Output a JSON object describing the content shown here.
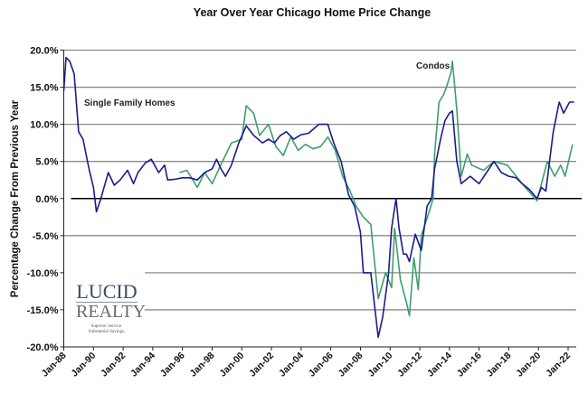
{
  "chart_data": {
    "type": "line",
    "title": "Year Over Year Chicago Home Price Change",
    "xlabel": "",
    "ylabel": "Percentage Change From Previous Year",
    "ylim": [
      -20,
      20
    ],
    "xlim": [
      1988,
      2022.5
    ],
    "y_ticks": [
      "20.0%",
      "15.0%",
      "10.0%",
      "5.0%",
      "0.0%",
      "-5.0%",
      "-10.0%",
      "-15.0%",
      "-20.0%"
    ],
    "x_ticks": [
      "Jan-88",
      "Jan-90",
      "Jan-92",
      "Jan-94",
      "Jan-96",
      "Jan-98",
      "Jan-00",
      "Jan-02",
      "Jan-04",
      "Jan-06",
      "Jan-08",
      "Jan-10",
      "Jan-12",
      "Jan-14",
      "Jan-16",
      "Jan-18",
      "Jan-20",
      "Jan-22"
    ],
    "grid": "horizontal",
    "legend": "none",
    "series": [
      {
        "name": "Single Family Homes",
        "color": "#1c1c8a",
        "points": [
          [
            1988.0,
            14.5
          ],
          [
            1988.15,
            19
          ],
          [
            1988.4,
            18.5
          ],
          [
            1988.7,
            16.8
          ],
          [
            1989.0,
            9
          ],
          [
            1989.3,
            8
          ],
          [
            1989.7,
            4
          ],
          [
            1990.0,
            1.5
          ],
          [
            1990.2,
            -1.8
          ],
          [
            1990.5,
            0
          ],
          [
            1991.0,
            3.5
          ],
          [
            1991.4,
            1.8
          ],
          [
            1991.8,
            2.5
          ],
          [
            1992.3,
            3.8
          ],
          [
            1992.7,
            2
          ],
          [
            1993.0,
            3.5
          ],
          [
            1993.5,
            4.8
          ],
          [
            1993.9,
            5.3
          ],
          [
            1994.4,
            3.5
          ],
          [
            1994.8,
            4.5
          ],
          [
            1995.0,
            2.5
          ],
          [
            1995.5,
            2.6
          ],
          [
            1996.0,
            2.8
          ],
          [
            1996.5,
            2.8
          ],
          [
            1997.0,
            2.5
          ],
          [
            1997.5,
            3.5
          ],
          [
            1998.0,
            4
          ],
          [
            1998.3,
            5.3
          ],
          [
            1998.6,
            4
          ],
          [
            1998.9,
            3
          ],
          [
            1999.3,
            4.5
          ],
          [
            1999.8,
            7.5
          ],
          [
            2000.3,
            9.8
          ],
          [
            2000.8,
            8.5
          ],
          [
            2001.4,
            7.5
          ],
          [
            2001.8,
            8
          ],
          [
            2002.2,
            7.5
          ],
          [
            2002.6,
            8.5
          ],
          [
            2003.0,
            9
          ],
          [
            2003.5,
            8
          ],
          [
            2004.0,
            8.6
          ],
          [
            2004.5,
            8.8
          ],
          [
            2005.2,
            10
          ],
          [
            2005.8,
            10
          ],
          [
            2006.2,
            7.5
          ],
          [
            2006.7,
            5
          ],
          [
            2007.2,
            0.5
          ],
          [
            2007.6,
            -1
          ],
          [
            2008.0,
            -4.5
          ],
          [
            2008.2,
            -10
          ],
          [
            2008.7,
            -10
          ],
          [
            2009.2,
            -18.7
          ],
          [
            2009.5,
            -16
          ],
          [
            2009.9,
            -10
          ],
          [
            2010.1,
            -4
          ],
          [
            2010.4,
            0
          ],
          [
            2010.6,
            -4
          ],
          [
            2010.9,
            -7.5
          ],
          [
            2011.1,
            -7.5
          ],
          [
            2011.3,
            -8.5
          ],
          [
            2011.7,
            -4.8
          ],
          [
            2012.1,
            -7
          ],
          [
            2012.5,
            -1
          ],
          [
            2012.8,
            0
          ],
          [
            2013.0,
            4
          ],
          [
            2013.4,
            8
          ],
          [
            2013.7,
            10.5
          ],
          [
            2014.0,
            11.5
          ],
          [
            2014.2,
            11.8
          ],
          [
            2014.5,
            5
          ],
          [
            2014.8,
            2
          ],
          [
            2015.4,
            3
          ],
          [
            2016.0,
            2
          ],
          [
            2016.5,
            3.5
          ],
          [
            2017.0,
            5
          ],
          [
            2017.5,
            3.5
          ],
          [
            2018.0,
            3
          ],
          [
            2018.5,
            2.8
          ],
          [
            2018.9,
            2
          ],
          [
            2019.4,
            1.2
          ],
          [
            2019.9,
            0
          ],
          [
            2020.2,
            1.5
          ],
          [
            2020.5,
            1
          ],
          [
            2021.0,
            9
          ],
          [
            2021.4,
            13
          ],
          [
            2021.7,
            11.5
          ],
          [
            2022.1,
            13
          ],
          [
            2022.4,
            13
          ]
        ]
      },
      {
        "name": "Condos",
        "color": "#3f9e6e",
        "points": [
          [
            1995.8,
            3.5
          ],
          [
            1996.3,
            3.8
          ],
          [
            1996.7,
            2.5
          ],
          [
            1997.0,
            1.5
          ],
          [
            1997.5,
            3.5
          ],
          [
            1998.0,
            2
          ],
          [
            1998.7,
            5
          ],
          [
            1999.3,
            7.5
          ],
          [
            2000.0,
            8
          ],
          [
            2000.3,
            12.5
          ],
          [
            2000.8,
            11.5
          ],
          [
            2001.2,
            8.5
          ],
          [
            2001.8,
            10
          ],
          [
            2002.3,
            7
          ],
          [
            2002.8,
            5.8
          ],
          [
            2003.3,
            8.3
          ],
          [
            2003.8,
            6.5
          ],
          [
            2004.3,
            7.3
          ],
          [
            2004.8,
            6.7
          ],
          [
            2005.3,
            7
          ],
          [
            2005.8,
            8.3
          ],
          [
            2006.3,
            6.5
          ],
          [
            2006.8,
            3
          ],
          [
            2007.3,
            1
          ],
          [
            2007.7,
            -1
          ],
          [
            2008.2,
            -2.5
          ],
          [
            2008.7,
            -3.5
          ],
          [
            2009.2,
            -13.5
          ],
          [
            2009.7,
            -10
          ],
          [
            2010.1,
            -12
          ],
          [
            2010.3,
            -4
          ],
          [
            2010.7,
            -11
          ],
          [
            2011.1,
            -14
          ],
          [
            2011.3,
            -15.8
          ],
          [
            2011.6,
            -8
          ],
          [
            2011.9,
            -12.3
          ],
          [
            2012.1,
            -5
          ],
          [
            2012.6,
            -2
          ],
          [
            2012.9,
            0
          ],
          [
            2013.0,
            6
          ],
          [
            2013.3,
            13
          ],
          [
            2013.6,
            14
          ],
          [
            2013.8,
            15
          ],
          [
            2014.1,
            17
          ],
          [
            2014.2,
            18.5
          ],
          [
            2014.5,
            12
          ],
          [
            2014.8,
            3
          ],
          [
            2015.2,
            6
          ],
          [
            2015.5,
            4.5
          ],
          [
            2016.3,
            3.8
          ],
          [
            2017.0,
            5
          ],
          [
            2017.9,
            4.5
          ],
          [
            2018.9,
            2
          ],
          [
            2019.9,
            -0.3
          ],
          [
            2020.6,
            5
          ],
          [
            2021.1,
            3
          ],
          [
            2021.5,
            4.5
          ],
          [
            2021.8,
            3
          ],
          [
            2022.3,
            7.3
          ]
        ]
      }
    ],
    "annotations": [
      "Single Family Homes",
      "Condos"
    ]
  },
  "logo": {
    "line1": "LUCID",
    "line2": "REALTY",
    "tagline1": "Superior Service.",
    "tagline2": "Substantial Savings."
  }
}
